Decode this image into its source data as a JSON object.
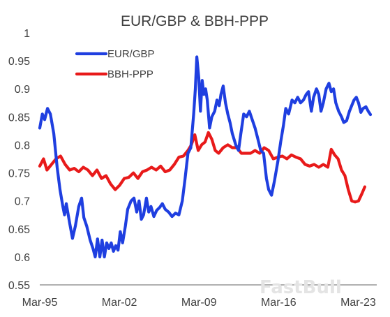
{
  "chart_data": {
    "type": "line",
    "title": "EUR/GBP & BBH-PPP",
    "xlabel": "",
    "ylabel": "",
    "ylim": [
      0.55,
      1
    ],
    "xlim": [
      1995.17,
      2024.8
    ],
    "y_ticks": [
      "0.55",
      "0.6",
      "0.65",
      "0.7",
      "0.75",
      "0.8",
      "0.85",
      "0.9",
      "0.95",
      "1"
    ],
    "x_ticks": [
      {
        "label": "Mar-95",
        "value": 1995.17
      },
      {
        "label": "Mar-02",
        "value": 2002.17
      },
      {
        "label": "Mar-09",
        "value": 2009.17
      },
      {
        "label": "Mar-16",
        "value": 2016.17
      },
      {
        "label": "Mar-23",
        "value": 2023.17
      }
    ],
    "grid": false,
    "legend_position": "top-left",
    "series": [
      {
        "name": "EUR/GBP",
        "color": "#1f3fe0",
        "points": [
          [
            1995.17,
            0.83
          ],
          [
            1995.4,
            0.855
          ],
          [
            1995.6,
            0.845
          ],
          [
            1995.85,
            0.865
          ],
          [
            1996.1,
            0.855
          ],
          [
            1996.4,
            0.82
          ],
          [
            1996.7,
            0.76
          ],
          [
            1996.95,
            0.72
          ],
          [
            1997.2,
            0.69
          ],
          [
            1997.35,
            0.675
          ],
          [
            1997.5,
            0.695
          ],
          [
            1997.8,
            0.66
          ],
          [
            1998.05,
            0.633
          ],
          [
            1998.3,
            0.655
          ],
          [
            1998.6,
            0.69
          ],
          [
            1998.85,
            0.705
          ],
          [
            1999.05,
            0.67
          ],
          [
            1999.3,
            0.655
          ],
          [
            1999.6,
            0.63
          ],
          [
            1999.85,
            0.615
          ],
          [
            2000.05,
            0.6
          ],
          [
            2000.25,
            0.632
          ],
          [
            2000.45,
            0.6
          ],
          [
            2000.65,
            0.63
          ],
          [
            2000.85,
            0.6
          ],
          [
            2001.05,
            0.625
          ],
          [
            2001.25,
            0.615
          ],
          [
            2001.45,
            0.625
          ],
          [
            2001.65,
            0.61
          ],
          [
            2001.85,
            0.62
          ],
          [
            2002.05,
            0.612
          ],
          [
            2002.25,
            0.645
          ],
          [
            2002.45,
            0.625
          ],
          [
            2002.7,
            0.655
          ],
          [
            2002.9,
            0.685
          ],
          [
            2003.2,
            0.7
          ],
          [
            2003.45,
            0.705
          ],
          [
            2003.7,
            0.68
          ],
          [
            2003.9,
            0.7
          ],
          [
            2004.1,
            0.667
          ],
          [
            2004.3,
            0.675
          ],
          [
            2004.55,
            0.705
          ],
          [
            2004.75,
            0.68
          ],
          [
            2004.95,
            0.69
          ],
          [
            2005.2,
            0.672
          ],
          [
            2005.45,
            0.683
          ],
          [
            2005.7,
            0.688
          ],
          [
            2005.95,
            0.695
          ],
          [
            2006.2,
            0.685
          ],
          [
            2006.5,
            0.68
          ],
          [
            2006.8,
            0.672
          ],
          [
            2007.1,
            0.678
          ],
          [
            2007.4,
            0.675
          ],
          [
            2007.7,
            0.7
          ],
          [
            2007.95,
            0.74
          ],
          [
            2008.2,
            0.785
          ],
          [
            2008.45,
            0.795
          ],
          [
            2008.7,
            0.855
          ],
          [
            2008.85,
            0.9
          ],
          [
            2008.98,
            0.957
          ],
          [
            2009.15,
            0.92
          ],
          [
            2009.3,
            0.86
          ],
          [
            2009.45,
            0.915
          ],
          [
            2009.6,
            0.89
          ],
          [
            2009.75,
            0.9
          ],
          [
            2009.9,
            0.88
          ],
          [
            2010.1,
            0.83
          ],
          [
            2010.3,
            0.85
          ],
          [
            2010.55,
            0.86
          ],
          [
            2010.75,
            0.88
          ],
          [
            2010.95,
            0.87
          ],
          [
            2011.1,
            0.89
          ],
          [
            2011.3,
            0.905
          ],
          [
            2011.5,
            0.875
          ],
          [
            2011.7,
            0.855
          ],
          [
            2011.9,
            0.84
          ],
          [
            2012.1,
            0.82
          ],
          [
            2012.4,
            0.8
          ],
          [
            2012.65,
            0.79
          ],
          [
            2012.85,
            0.82
          ],
          [
            2013.1,
            0.855
          ],
          [
            2013.35,
            0.85
          ],
          [
            2013.6,
            0.86
          ],
          [
            2013.85,
            0.845
          ],
          [
            2014.1,
            0.83
          ],
          [
            2014.35,
            0.81
          ],
          [
            2014.6,
            0.79
          ],
          [
            2014.85,
            0.785
          ],
          [
            2015.1,
            0.74
          ],
          [
            2015.3,
            0.72
          ],
          [
            2015.55,
            0.71
          ],
          [
            2015.8,
            0.735
          ],
          [
            2016.1,
            0.77
          ],
          [
            2016.35,
            0.805
          ],
          [
            2016.6,
            0.835
          ],
          [
            2016.8,
            0.865
          ],
          [
            2017.05,
            0.855
          ],
          [
            2017.35,
            0.88
          ],
          [
            2017.6,
            0.875
          ],
          [
            2017.85,
            0.885
          ],
          [
            2018.1,
            0.875
          ],
          [
            2018.35,
            0.88
          ],
          [
            2018.6,
            0.89
          ],
          [
            2018.8,
            0.895
          ],
          [
            2019.05,
            0.86
          ],
          [
            2019.25,
            0.885
          ],
          [
            2019.5,
            0.9
          ],
          [
            2019.7,
            0.89
          ],
          [
            2019.9,
            0.86
          ],
          [
            2020.1,
            0.875
          ],
          [
            2020.35,
            0.9
          ],
          [
            2020.6,
            0.91
          ],
          [
            2020.8,
            0.895
          ],
          [
            2021.0,
            0.9
          ],
          [
            2021.2,
            0.875
          ],
          [
            2021.45,
            0.86
          ],
          [
            2021.7,
            0.85
          ],
          [
            2021.9,
            0.84
          ],
          [
            2022.15,
            0.843
          ],
          [
            2022.4,
            0.86
          ],
          [
            2022.6,
            0.87
          ],
          [
            2022.8,
            0.88
          ],
          [
            2023.0,
            0.885
          ],
          [
            2023.2,
            0.875
          ],
          [
            2023.4,
            0.858
          ],
          [
            2023.6,
            0.865
          ],
          [
            2023.85,
            0.868
          ],
          [
            2024.05,
            0.86
          ],
          [
            2024.25,
            0.854
          ]
        ]
      },
      {
        "name": "BBH-PPP",
        "color": "#e81a1a",
        "points": [
          [
            1995.17,
            0.762
          ],
          [
            1995.5,
            0.775
          ],
          [
            1995.8,
            0.755
          ],
          [
            1996.2,
            0.765
          ],
          [
            1996.6,
            0.775
          ],
          [
            1997.0,
            0.78
          ],
          [
            1997.4,
            0.765
          ],
          [
            1997.8,
            0.755
          ],
          [
            1998.2,
            0.758
          ],
          [
            1998.6,
            0.752
          ],
          [
            1999.0,
            0.76
          ],
          [
            1999.4,
            0.755
          ],
          [
            1999.8,
            0.745
          ],
          [
            2000.2,
            0.755
          ],
          [
            2000.6,
            0.74
          ],
          [
            2001.0,
            0.745
          ],
          [
            2001.4,
            0.73
          ],
          [
            2001.8,
            0.72
          ],
          [
            2002.2,
            0.728
          ],
          [
            2002.6,
            0.74
          ],
          [
            2003.0,
            0.742
          ],
          [
            2003.4,
            0.75
          ],
          [
            2003.8,
            0.74
          ],
          [
            2004.2,
            0.752
          ],
          [
            2004.6,
            0.755
          ],
          [
            2005.0,
            0.76
          ],
          [
            2005.4,
            0.755
          ],
          [
            2005.8,
            0.762
          ],
          [
            2006.2,
            0.752
          ],
          [
            2006.6,
            0.755
          ],
          [
            2007.0,
            0.765
          ],
          [
            2007.4,
            0.778
          ],
          [
            2007.8,
            0.78
          ],
          [
            2008.2,
            0.79
          ],
          [
            2008.5,
            0.8
          ],
          [
            2008.8,
            0.818
          ],
          [
            2009.1,
            0.79
          ],
          [
            2009.4,
            0.8
          ],
          [
            2009.7,
            0.805
          ],
          [
            2010.0,
            0.822
          ],
          [
            2010.3,
            0.81
          ],
          [
            2010.6,
            0.79
          ],
          [
            2010.9,
            0.785
          ],
          [
            2011.3,
            0.795
          ],
          [
            2011.7,
            0.8
          ],
          [
            2012.1,
            0.795
          ],
          [
            2012.5,
            0.795
          ],
          [
            2012.9,
            0.785
          ],
          [
            2013.3,
            0.785
          ],
          [
            2013.7,
            0.785
          ],
          [
            2014.1,
            0.79
          ],
          [
            2014.5,
            0.785
          ],
          [
            2014.9,
            0.795
          ],
          [
            2015.3,
            0.79
          ],
          [
            2015.7,
            0.775
          ],
          [
            2016.1,
            0.778
          ],
          [
            2016.5,
            0.78
          ],
          [
            2016.9,
            0.775
          ],
          [
            2017.3,
            0.782
          ],
          [
            2017.7,
            0.778
          ],
          [
            2018.1,
            0.775
          ],
          [
            2018.5,
            0.765
          ],
          [
            2018.9,
            0.762
          ],
          [
            2019.3,
            0.765
          ],
          [
            2019.7,
            0.76
          ],
          [
            2020.1,
            0.765
          ],
          [
            2020.5,
            0.76
          ],
          [
            2020.8,
            0.792
          ],
          [
            2021.1,
            0.782
          ],
          [
            2021.4,
            0.775
          ],
          [
            2021.7,
            0.755
          ],
          [
            2022.0,
            0.745
          ],
          [
            2022.3,
            0.72
          ],
          [
            2022.6,
            0.7
          ],
          [
            2022.9,
            0.698
          ],
          [
            2023.2,
            0.7
          ],
          [
            2023.5,
            0.713
          ],
          [
            2023.75,
            0.725
          ]
        ]
      }
    ]
  }
}
